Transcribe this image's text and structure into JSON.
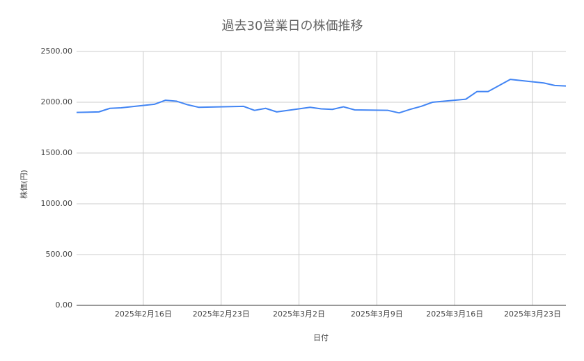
{
  "chart_data": {
    "type": "line",
    "title": "過去30営業日の株価推移",
    "x_label": "日付",
    "y_label": "株価(円)",
    "x": [
      "2025-02-10",
      "2025-02-12",
      "2025-02-13",
      "2025-02-14",
      "2025-02-17",
      "2025-02-18",
      "2025-02-19",
      "2025-02-20",
      "2025-02-21",
      "2025-02-25",
      "2025-02-26",
      "2025-02-27",
      "2025-02-28",
      "2025-03-03",
      "2025-03-04",
      "2025-03-05",
      "2025-03-06",
      "2025-03-07",
      "2025-03-10",
      "2025-03-11",
      "2025-03-12",
      "2025-03-13",
      "2025-03-14",
      "2025-03-17",
      "2025-03-18",
      "2025-03-19",
      "2025-03-21",
      "2025-03-24",
      "2025-03-25",
      "2025-03-26"
    ],
    "values": [
      1900,
      1905,
      1940,
      1945,
      1980,
      2020,
      2010,
      1975,
      1950,
      1960,
      1920,
      1940,
      1905,
      1950,
      1935,
      1930,
      1955,
      1925,
      1920,
      1895,
      1930,
      1960,
      2000,
      2030,
      2105,
      2105,
      2225,
      2190,
      2165,
      2160
    ],
    "color": "#4285f4",
    "xlim": [
      "2025-02-10",
      "2025-03-26"
    ],
    "xticks": [
      {
        "value": "2025-02-16",
        "label": "2025年2月16日"
      },
      {
        "value": "2025-02-23",
        "label": "2025年2月23日"
      },
      {
        "value": "2025-03-02",
        "label": "2025年3月2日"
      },
      {
        "value": "2025-03-09",
        "label": "2025年3月9日"
      },
      {
        "value": "2025-03-16",
        "label": "2025年3月16日"
      },
      {
        "value": "2025-03-23",
        "label": "2025年3月23日"
      }
    ],
    "ylim": [
      0,
      2500
    ],
    "yticks": [
      {
        "value": 0,
        "label": "0.00"
      },
      {
        "value": 500,
        "label": "500.00"
      },
      {
        "value": 1000,
        "label": "1000.00"
      },
      {
        "value": 1500,
        "label": "1500.00"
      },
      {
        "value": 2000,
        "label": "2000.00"
      },
      {
        "value": 2500,
        "label": "2500.00"
      }
    ],
    "grid": true
  }
}
